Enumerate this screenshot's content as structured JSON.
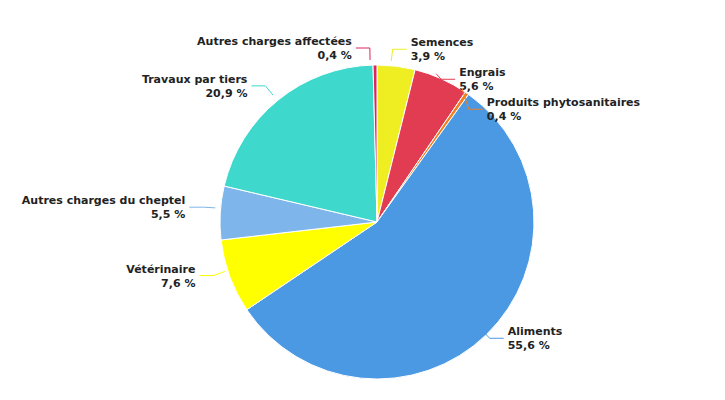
{
  "chart_data": {
    "type": "pie",
    "categories": [
      "Semences",
      "Engrais",
      "Produits phytosanitaires",
      "Aliments",
      "Vétérinaire",
      "Autres charges du cheptel",
      "Travaux par tiers",
      "Autres charges affectées"
    ],
    "values": [
      3.9,
      5.6,
      0.4,
      55.6,
      7.6,
      5.5,
      20.9,
      0.4
    ],
    "value_labels": [
      "3,9 %",
      "5,6 %",
      "0,4 %",
      "55,6 %",
      "7,6 %",
      "5,5 %",
      "20,9 %",
      "0,4 %"
    ],
    "colors": [
      "#eeee22",
      "#e23c52",
      "#f08020",
      "#4b98e3",
      "#ffff00",
      "#7eb5ea",
      "#3fd8cc",
      "#e0245a"
    ],
    "data_labels": true
  }
}
